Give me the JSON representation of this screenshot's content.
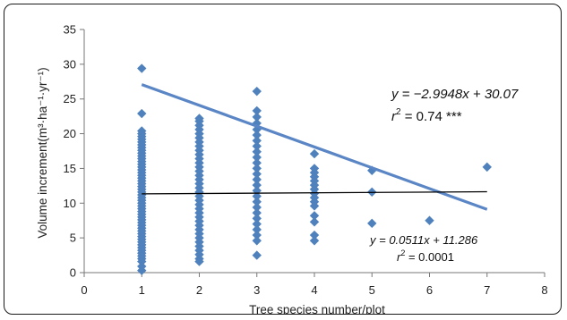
{
  "chart_data": {
    "type": "scatter",
    "xlabel": "Tree species number/plot",
    "ylabel": "Volume increment(m³·ha⁻¹·yr⁻¹)",
    "xlim": [
      0,
      8
    ],
    "ylim": [
      0,
      35
    ],
    "xticks": [
      "0",
      "1",
      "2",
      "3",
      "4",
      "5",
      "6",
      "7",
      "8"
    ],
    "yticks": [
      "0",
      "5",
      "10",
      "15",
      "20",
      "25",
      "30",
      "35"
    ],
    "grid": false,
    "marker_color": "#4f81bd",
    "points": {
      "1": [
        29.4,
        22.9,
        20.4,
        20.0,
        19.6,
        19.2,
        18.8,
        18.4,
        18.0,
        17.6,
        17.2,
        16.8,
        16.4,
        16.0,
        15.6,
        15.2,
        14.8,
        14.4,
        14.0,
        13.6,
        13.2,
        12.8,
        12.4,
        12.0,
        11.6,
        11.2,
        10.8,
        10.4,
        10.0,
        9.6,
        9.2,
        8.8,
        8.4,
        8.0,
        7.6,
        7.2,
        6.8,
        6.4,
        6.0,
        5.6,
        5.2,
        4.8,
        4.4,
        4.0,
        3.6,
        3.2,
        2.8,
        2.4,
        2.0,
        1.6,
        0.9,
        0.3
      ],
      "2": [
        22.2,
        21.8,
        21.2,
        20.6,
        20.0,
        19.4,
        18.8,
        18.2,
        17.6,
        17.0,
        16.4,
        15.8,
        15.2,
        14.6,
        14.0,
        13.4,
        12.8,
        12.2,
        11.6,
        11.0,
        10.4,
        9.8,
        9.2,
        8.6,
        8.0,
        7.4,
        6.8,
        6.2,
        5.6,
        5.0,
        4.4,
        3.8,
        3.2,
        2.6,
        2.0,
        1.6
      ],
      "3": [
        26.1,
        23.3,
        22.4,
        21.5,
        20.6,
        19.8,
        19.0,
        18.2,
        17.4,
        16.6,
        15.8,
        15.0,
        14.2,
        13.4,
        12.6,
        11.8,
        11.0,
        10.2,
        9.4,
        8.6,
        7.8,
        7.0,
        6.2,
        5.4,
        4.6,
        2.5
      ],
      "4": [
        17.1,
        15.0,
        14.4,
        13.8,
        13.2,
        12.6,
        12.0,
        11.4,
        10.8,
        10.2,
        9.6,
        8.2,
        7.3,
        5.4,
        4.6
      ],
      "5": [
        14.7,
        11.6,
        7.1
      ],
      "6": [
        7.5
      ],
      "7": [
        15.2
      ]
    },
    "series": [
      {
        "name": "y = −2.9948x + 30.07",
        "slope": -2.9948,
        "intercept": 30.07,
        "x_range": [
          1,
          7
        ],
        "color": "#5b86c5"
      },
      {
        "name": "y = 0.0511x + 11.286",
        "slope": 0.0511,
        "intercept": 11.286,
        "x_range": [
          1,
          7
        ],
        "color": "#000000"
      }
    ],
    "annotations": {
      "eq1_line1": "y = −2.9948x + 30.07",
      "eq1_r2_prefix": "r",
      "eq1_r2_suffix": " = 0.74 ***",
      "eq2_line1": "y = 0.0511x + 11.286",
      "eq2_r2_prefix": "r",
      "eq2_r2_suffix": " = 0.0001",
      "superscript_two": "2"
    }
  }
}
